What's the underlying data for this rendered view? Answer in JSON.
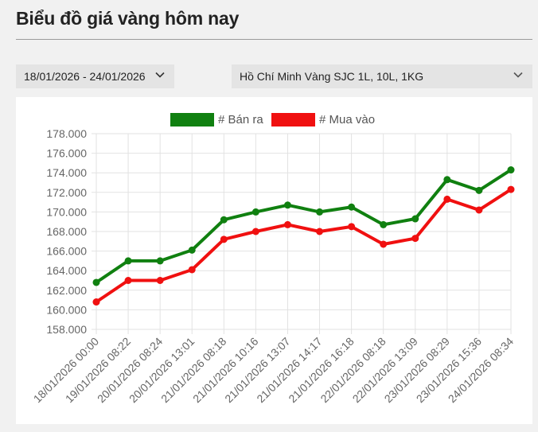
{
  "page": {
    "title": "Biểu đồ giá vàng hôm nay"
  },
  "filters": {
    "date_range": "18/01/2026 - 24/01/2026",
    "product": "Hồ Chí Minh Vàng SJC 1L, 10L, 1KG",
    "chevron_icon": "chevron-down-icon"
  },
  "chart_data": {
    "type": "line",
    "title": "",
    "xlabel": "",
    "ylabel": "",
    "ylim": [
      158000,
      178000
    ],
    "y_step": 2000,
    "y_tick_labels": [
      "158.000",
      "160.000",
      "162.000",
      "164.000",
      "166.000",
      "168.000",
      "170.000",
      "172.000",
      "174.000",
      "176.000",
      "178.000"
    ],
    "grid": true,
    "legend_position": "top-center",
    "categories": [
      "18/01/2026 00:00",
      "19/01/2026 08:22",
      "20/01/2026 08:24",
      "20/01/2026 13:01",
      "21/01/2026 08:18",
      "21/01/2026 10:16",
      "21/01/2026 13:07",
      "21/01/2026 14:17",
      "21/01/2026 16:18",
      "22/01/2026 08:18",
      "22/01/2026 13:09",
      "23/01/2026 08:29",
      "23/01/2026 15:36",
      "24/01/2026 08:34"
    ],
    "series": [
      {
        "name": "# Bán ra",
        "color": "#108010",
        "values": [
          162800,
          165000,
          165000,
          166100,
          169200,
          170000,
          170700,
          170000,
          170500,
          168700,
          169300,
          173300,
          172200,
          174300
        ]
      },
      {
        "name": "# Mua vào",
        "color": "#f01010",
        "values": [
          160800,
          163000,
          163000,
          164100,
          167200,
          168000,
          168700,
          168000,
          168500,
          166700,
          167300,
          171300,
          170200,
          172300
        ]
      }
    ]
  }
}
